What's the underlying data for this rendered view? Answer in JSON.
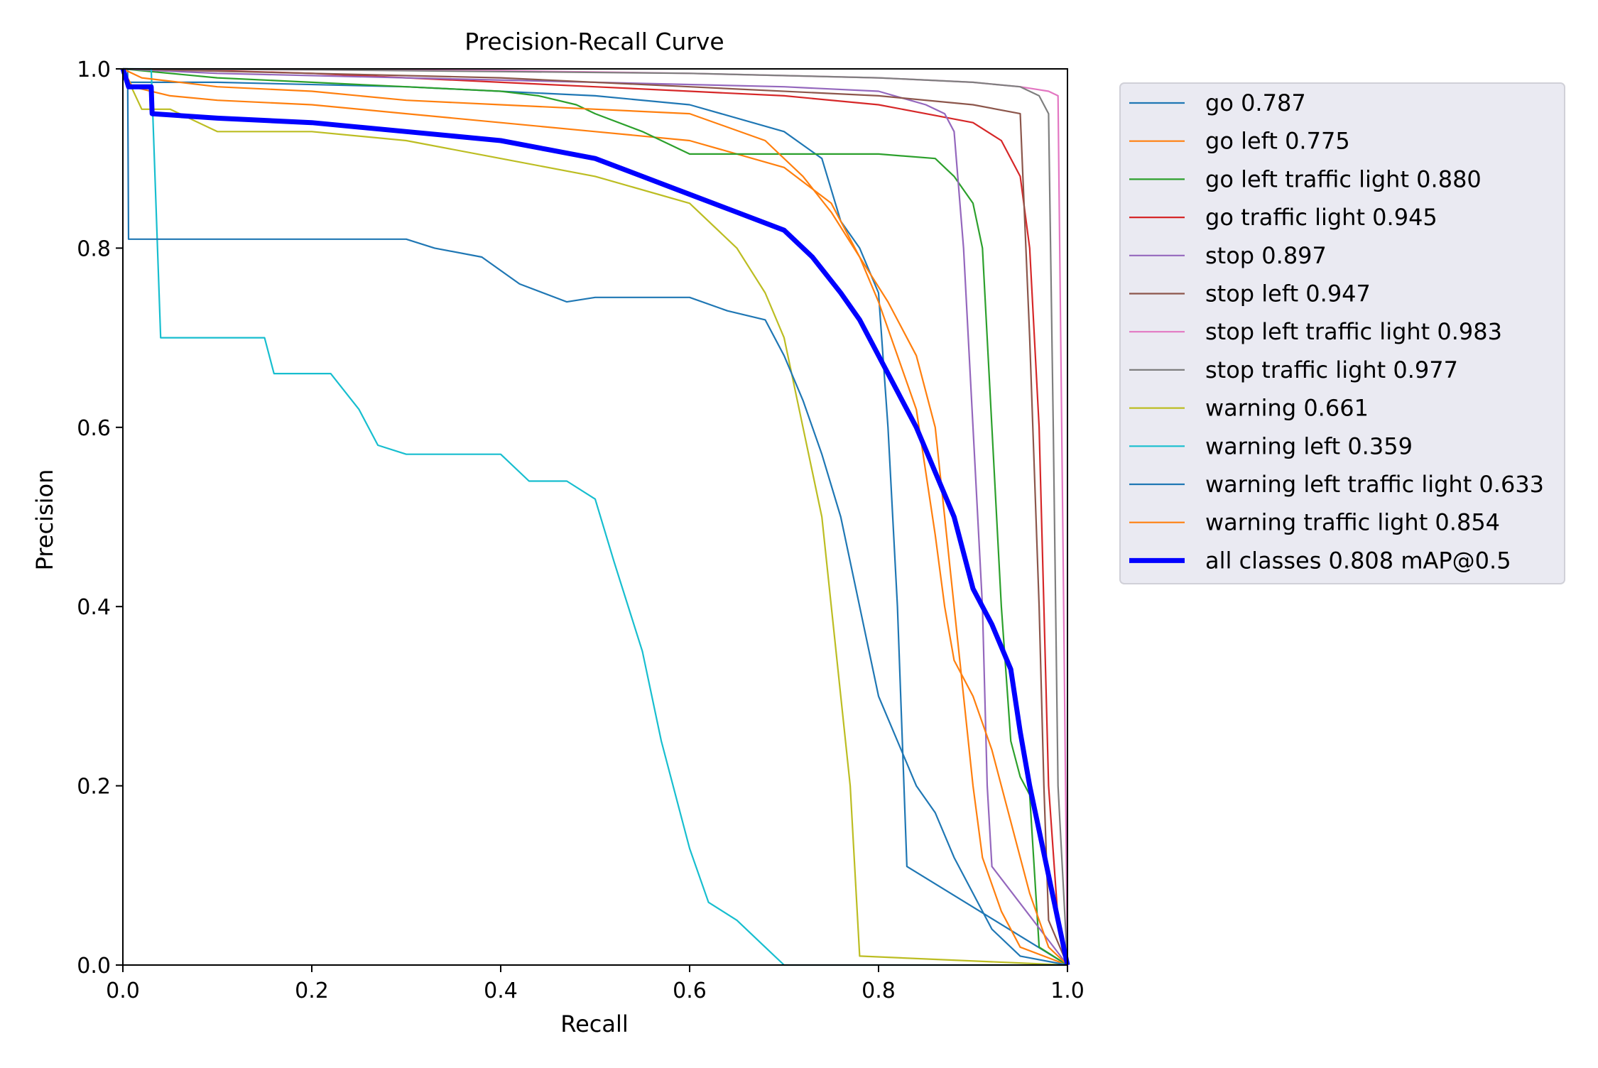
{
  "chart_data": {
    "type": "line",
    "title": "Precision-Recall Curve",
    "xlabel": "Recall",
    "ylabel": "Precision",
    "xlim": [
      0,
      1
    ],
    "ylim": [
      0,
      1
    ],
    "xticks": [
      "0.0",
      "0.2",
      "0.4",
      "0.6",
      "0.8",
      "1.0"
    ],
    "yticks": [
      "0.0",
      "0.2",
      "0.4",
      "0.6",
      "0.8",
      "1.0"
    ],
    "grid": false,
    "legend_position": "outside-right",
    "series": [
      {
        "name": "go 0.787",
        "color": "#1f77b4",
        "x": [
          0,
          0.005,
          0.1,
          0.3,
          0.5,
          0.6,
          0.7,
          0.74,
          0.76,
          0.78,
          0.8,
          0.81,
          0.82,
          0.83,
          1.0
        ],
        "y": [
          1.0,
          0.985,
          0.985,
          0.98,
          0.97,
          0.96,
          0.93,
          0.9,
          0.83,
          0.8,
          0.75,
          0.6,
          0.4,
          0.11,
          0.0
        ]
      },
      {
        "name": "go left 0.775",
        "color": "#ff7f0e",
        "x": [
          0,
          0.01,
          0.05,
          0.1,
          0.2,
          0.3,
          0.4,
          0.5,
          0.6,
          0.7,
          0.75,
          0.78,
          0.81,
          0.84,
          0.86,
          0.87,
          0.88,
          0.89,
          0.9,
          0.91,
          0.93,
          0.95,
          1.0
        ],
        "y": [
          1.0,
          0.98,
          0.97,
          0.965,
          0.96,
          0.95,
          0.94,
          0.93,
          0.92,
          0.89,
          0.85,
          0.79,
          0.74,
          0.68,
          0.6,
          0.5,
          0.4,
          0.3,
          0.2,
          0.12,
          0.06,
          0.02,
          0.0
        ]
      },
      {
        "name": "go left traffic light 0.880",
        "color": "#2ca02c",
        "x": [
          0,
          0.1,
          0.2,
          0.3,
          0.4,
          0.44,
          0.48,
          0.5,
          0.55,
          0.6,
          0.65,
          0.7,
          0.8,
          0.86,
          0.88,
          0.9,
          0.91,
          0.92,
          0.93,
          0.94,
          0.95,
          0.96,
          0.97,
          1.0
        ],
        "y": [
          1.0,
          0.99,
          0.985,
          0.98,
          0.975,
          0.97,
          0.96,
          0.95,
          0.93,
          0.905,
          0.905,
          0.905,
          0.905,
          0.9,
          0.88,
          0.85,
          0.8,
          0.6,
          0.4,
          0.25,
          0.21,
          0.19,
          0.02,
          0.0
        ]
      },
      {
        "name": "go traffic light 0.945",
        "color": "#d62728",
        "x": [
          0,
          0.1,
          0.2,
          0.3,
          0.4,
          0.5,
          0.6,
          0.7,
          0.8,
          0.85,
          0.9,
          0.93,
          0.95,
          0.96,
          0.97,
          0.975,
          0.98,
          0.99,
          1.0
        ],
        "y": [
          1.0,
          0.998,
          0.995,
          0.99,
          0.985,
          0.98,
          0.975,
          0.97,
          0.96,
          0.95,
          0.94,
          0.92,
          0.88,
          0.8,
          0.6,
          0.4,
          0.2,
          0.05,
          0.0
        ]
      },
      {
        "name": "stop 0.897",
        "color": "#9467bd",
        "x": [
          0,
          0.1,
          0.3,
          0.5,
          0.7,
          0.8,
          0.85,
          0.87,
          0.88,
          0.89,
          0.9,
          0.91,
          0.915,
          0.92,
          1.0
        ],
        "y": [
          1.0,
          0.995,
          0.99,
          0.985,
          0.98,
          0.975,
          0.96,
          0.95,
          0.93,
          0.8,
          0.6,
          0.4,
          0.2,
          0.11,
          0.0
        ]
      },
      {
        "name": "stop left 0.947",
        "color": "#8c564b",
        "x": [
          0,
          0.2,
          0.4,
          0.6,
          0.8,
          0.9,
          0.95,
          0.96,
          0.97,
          0.975,
          0.98,
          1.0
        ],
        "y": [
          1.0,
          0.995,
          0.99,
          0.98,
          0.97,
          0.96,
          0.95,
          0.7,
          0.4,
          0.2,
          0.05,
          0.0
        ]
      },
      {
        "name": "stop left traffic light 0.983",
        "color": "#e377c2",
        "x": [
          0,
          0.2,
          0.4,
          0.6,
          0.8,
          0.9,
          0.95,
          0.98,
          0.99,
          0.995,
          0.998,
          1.0
        ],
        "y": [
          1.0,
          0.999,
          0.998,
          0.995,
          0.99,
          0.985,
          0.98,
          0.975,
          0.97,
          0.5,
          0.2,
          0.0
        ]
      },
      {
        "name": "stop traffic light 0.977",
        "color": "#7f7f7f",
        "x": [
          0,
          0.2,
          0.4,
          0.6,
          0.8,
          0.9,
          0.95,
          0.97,
          0.98,
          0.985,
          0.99,
          1.0
        ],
        "y": [
          1.0,
          0.999,
          0.997,
          0.995,
          0.99,
          0.985,
          0.98,
          0.97,
          0.95,
          0.6,
          0.2,
          0.0
        ]
      },
      {
        "name": "warning 0.661",
        "color": "#bcbd22",
        "x": [
          0,
          0.02,
          0.05,
          0.1,
          0.2,
          0.3,
          0.4,
          0.5,
          0.6,
          0.65,
          0.68,
          0.7,
          0.72,
          0.74,
          0.75,
          0.76,
          0.77,
          0.78,
          1.0
        ],
        "y": [
          1.0,
          0.955,
          0.955,
          0.93,
          0.93,
          0.92,
          0.9,
          0.88,
          0.85,
          0.8,
          0.75,
          0.7,
          0.6,
          0.5,
          0.4,
          0.3,
          0.2,
          0.01,
          0.0
        ]
      },
      {
        "name": "warning left 0.359",
        "color": "#17becf",
        "x": [
          0,
          0.03,
          0.04,
          0.15,
          0.16,
          0.22,
          0.25,
          0.27,
          0.3,
          0.4,
          0.43,
          0.47,
          0.5,
          0.52,
          0.55,
          0.56,
          0.57,
          0.59,
          0.6,
          0.62,
          0.65,
          0.68,
          0.7,
          1.0
        ],
        "y": [
          1.0,
          1.0,
          0.7,
          0.7,
          0.66,
          0.66,
          0.62,
          0.58,
          0.57,
          0.57,
          0.54,
          0.54,
          0.52,
          0.45,
          0.35,
          0.3,
          0.25,
          0.17,
          0.13,
          0.07,
          0.05,
          0.02,
          0.0,
          0.0
        ]
      },
      {
        "name": "warning left traffic light 0.633",
        "color": "#1f77b4",
        "x": [
          0,
          0.005,
          0.006,
          0.1,
          0.2,
          0.3,
          0.33,
          0.38,
          0.42,
          0.47,
          0.5,
          0.6,
          0.64,
          0.68,
          0.7,
          0.72,
          0.74,
          0.76,
          0.78,
          0.8,
          0.82,
          0.84,
          0.86,
          0.88,
          0.9,
          0.92,
          0.95,
          1.0
        ],
        "y": [
          1.0,
          1.0,
          0.81,
          0.81,
          0.81,
          0.81,
          0.8,
          0.79,
          0.76,
          0.74,
          0.745,
          0.745,
          0.73,
          0.72,
          0.68,
          0.63,
          0.57,
          0.5,
          0.4,
          0.3,
          0.25,
          0.2,
          0.17,
          0.12,
          0.08,
          0.04,
          0.01,
          0.0
        ]
      },
      {
        "name": "warning traffic light 0.854",
        "color": "#ff7f0e",
        "x": [
          0,
          0.02,
          0.1,
          0.2,
          0.3,
          0.4,
          0.5,
          0.6,
          0.68,
          0.72,
          0.75,
          0.78,
          0.8,
          0.82,
          0.84,
          0.85,
          0.86,
          0.87,
          0.88,
          0.9,
          0.92,
          0.93,
          0.94,
          0.95,
          0.96,
          0.97,
          0.98,
          1.0
        ],
        "y": [
          1.0,
          0.99,
          0.98,
          0.975,
          0.965,
          0.96,
          0.955,
          0.95,
          0.92,
          0.88,
          0.84,
          0.79,
          0.74,
          0.68,
          0.62,
          0.55,
          0.48,
          0.4,
          0.34,
          0.3,
          0.24,
          0.2,
          0.16,
          0.12,
          0.08,
          0.05,
          0.02,
          0.0
        ]
      },
      {
        "name": "all classes 0.808 mAP@0.5",
        "color": "#0000ff",
        "bold": true,
        "x": [
          0,
          0.003,
          0.006,
          0.03,
          0.031,
          0.1,
          0.2,
          0.3,
          0.4,
          0.45,
          0.5,
          0.55,
          0.6,
          0.65,
          0.7,
          0.73,
          0.76,
          0.78,
          0.8,
          0.82,
          0.84,
          0.86,
          0.88,
          0.9,
          0.92,
          0.94,
          0.95,
          0.96,
          0.97,
          0.98,
          0.99,
          1.0
        ],
        "y": [
          1.0,
          0.99,
          0.98,
          0.98,
          0.95,
          0.945,
          0.94,
          0.93,
          0.92,
          0.91,
          0.9,
          0.88,
          0.86,
          0.84,
          0.82,
          0.79,
          0.75,
          0.72,
          0.68,
          0.64,
          0.6,
          0.55,
          0.5,
          0.42,
          0.38,
          0.33,
          0.26,
          0.2,
          0.15,
          0.1,
          0.05,
          0.0
        ]
      }
    ]
  }
}
